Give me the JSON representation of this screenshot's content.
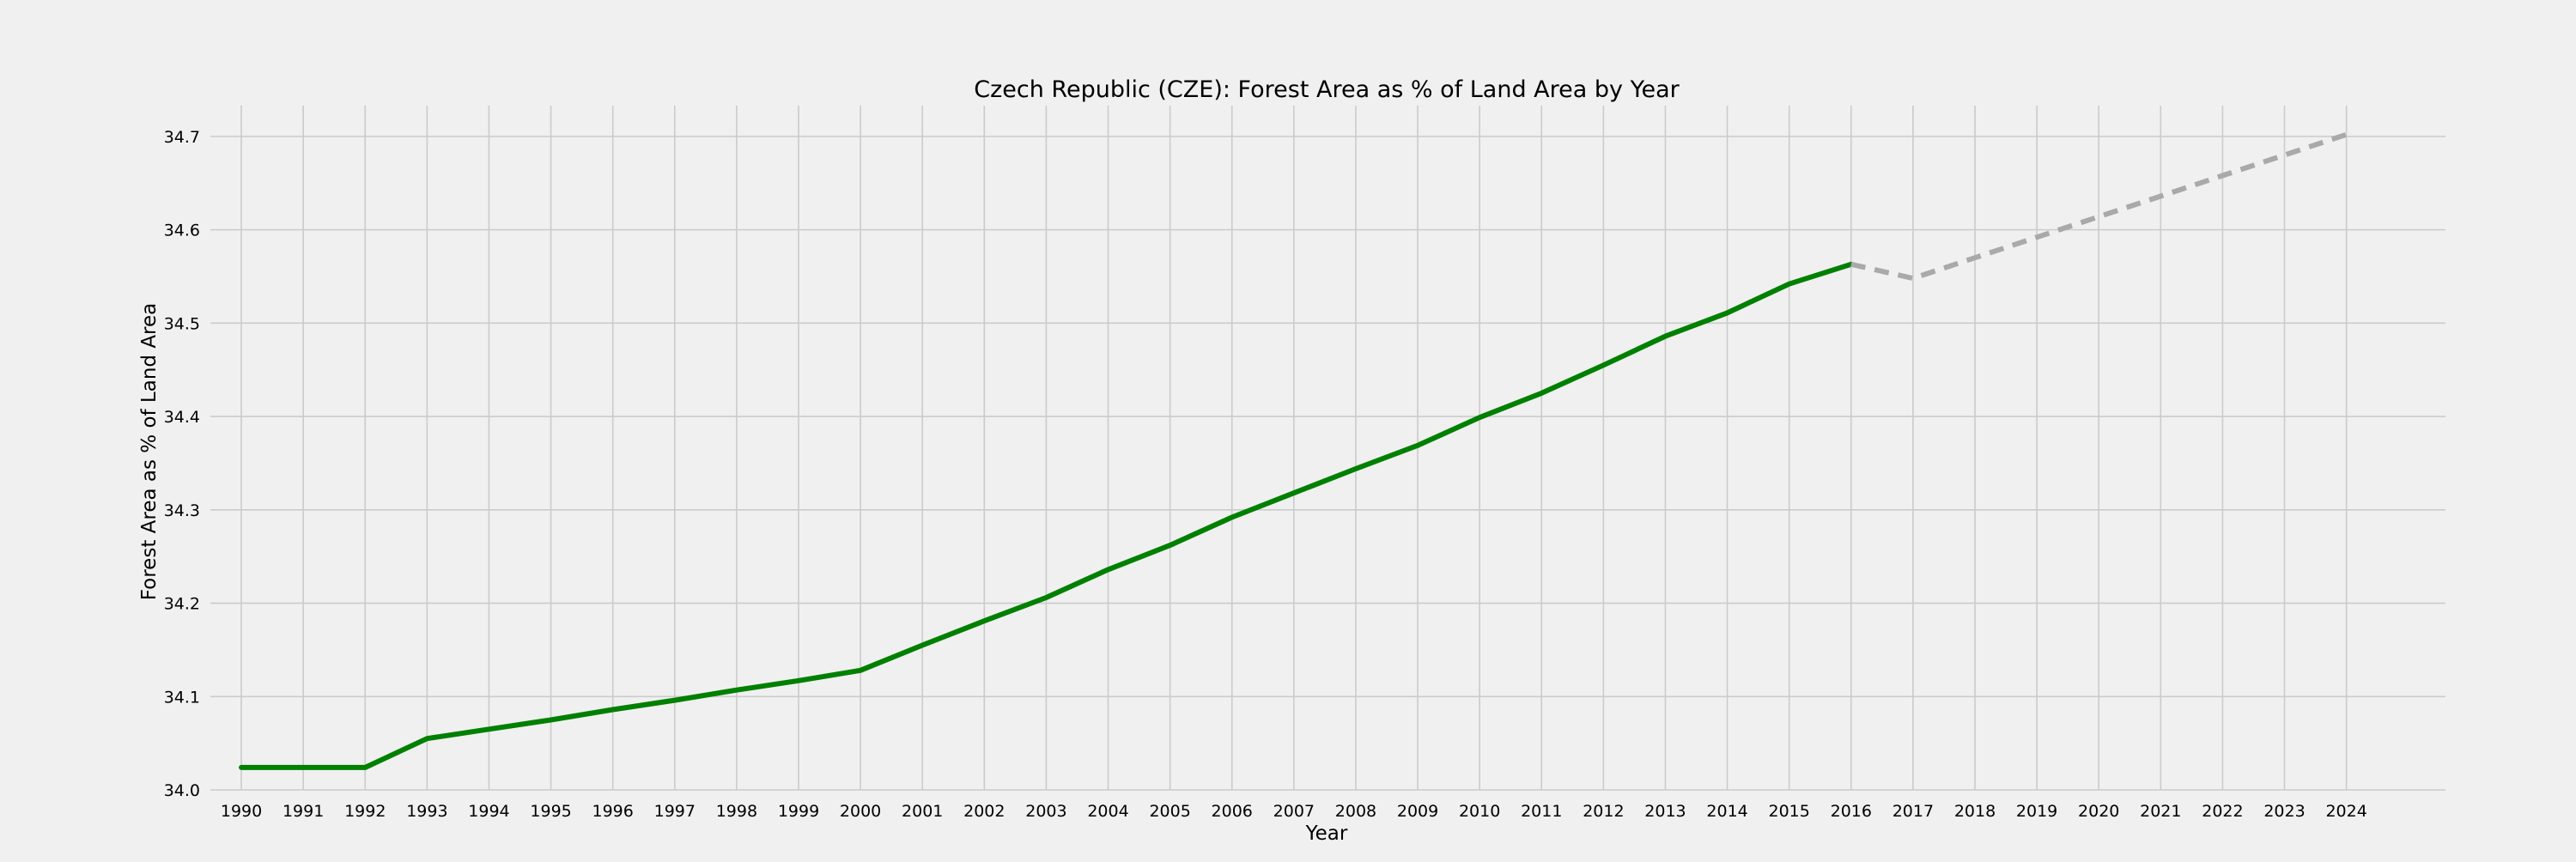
{
  "chart_data": {
    "type": "line",
    "title": "Czech Republic (CZE): Forest Area as % of Land Area by Year",
    "xlabel": "Year",
    "ylabel": "Forest Area as % of Land Area",
    "x_ticks": [
      "1990",
      "1991",
      "1992",
      "1993",
      "1994",
      "1995",
      "1996",
      "1997",
      "1998",
      "1999",
      "2000",
      "2001",
      "2002",
      "2003",
      "2004",
      "2005",
      "2006",
      "2007",
      "2008",
      "2009",
      "2010",
      "2011",
      "2012",
      "2013",
      "2014",
      "2015",
      "2016",
      "2017",
      "2018",
      "2019",
      "2020",
      "2021",
      "2022",
      "2023",
      "2024"
    ],
    "y_ticks": [
      "34.0",
      "34.1",
      "34.2",
      "34.3",
      "34.4",
      "34.5",
      "34.6",
      "34.7"
    ],
    "xlim": [
      1989.5,
      2025.6
    ],
    "ylim": [
      34.0,
      34.733
    ],
    "grid": true,
    "series": [
      {
        "style": "solid",
        "color": "#008000",
        "x": [
          1990,
          1991,
          1992,
          1993,
          1994,
          1995,
          1996,
          1997,
          1998,
          1999,
          2000,
          2001,
          2002,
          2003,
          2004,
          2005,
          2006,
          2007,
          2008,
          2009,
          2010,
          2011,
          2012,
          2013,
          2014,
          2015,
          2016
        ],
        "y": [
          34.024,
          34.024,
          34.024,
          34.055,
          34.065,
          34.075,
          34.086,
          34.096,
          34.107,
          34.117,
          34.128,
          34.155,
          34.181,
          34.206,
          34.236,
          34.262,
          34.292,
          34.318,
          34.344,
          34.369,
          34.399,
          34.425,
          34.455,
          34.486,
          34.511,
          34.542,
          34.563
        ]
      },
      {
        "style": "dashed",
        "color": "#a9a9a9",
        "x": [
          2016,
          2017,
          2018,
          2019,
          2020,
          2021,
          2022,
          2023,
          2024
        ],
        "y": [
          34.563,
          34.548,
          34.57,
          34.592,
          34.614,
          34.636,
          34.658,
          34.68,
          34.702
        ]
      }
    ]
  },
  "colors": {
    "background": "#f0f0f0",
    "grid": "#cbcbcb",
    "text": "#000000"
  }
}
